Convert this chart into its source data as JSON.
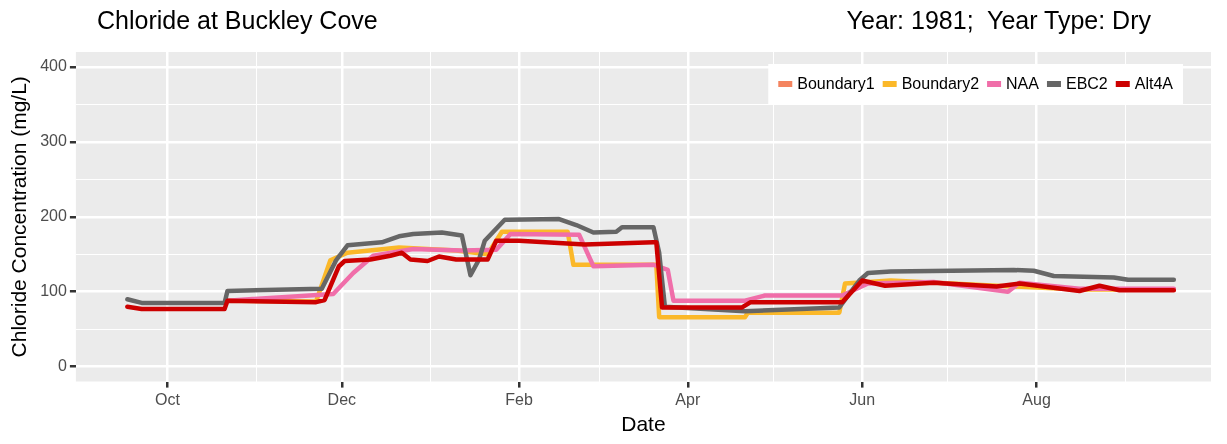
{
  "chart_data": {
    "type": "line",
    "title": "Chloride at Buckley Cove",
    "subtitle": "Year: 1981;  Year Type: Dry",
    "xlabel": "Date",
    "ylabel": "Chloride Concentration (mg/L)",
    "xlim": [
      "1980-08-30",
      "1981-10-01"
    ],
    "xticks": [
      {
        "value": "1980-10-01",
        "label": "Oct"
      },
      {
        "value": "1980-11-01",
        "label": null
      },
      {
        "value": "1980-12-01",
        "label": "Dec"
      },
      {
        "value": "1981-01-01",
        "label": null
      },
      {
        "value": "1981-02-01",
        "label": "Feb"
      },
      {
        "value": "1981-03-01",
        "label": null
      },
      {
        "value": "1981-04-01",
        "label": "Apr"
      },
      {
        "value": "1981-05-01",
        "label": null
      },
      {
        "value": "1981-06-01",
        "label": "Jun"
      },
      {
        "value": "1981-07-01",
        "label": null
      },
      {
        "value": "1981-08-01",
        "label": "Aug"
      },
      {
        "value": "1981-09-01",
        "label": null
      }
    ],
    "ylim": [
      -20,
      420
    ],
    "yticks": [
      0,
      {
        "value": 50,
        "label": null
      },
      100,
      {
        "value": 150,
        "label": null
      },
      200,
      {
        "value": 250,
        "label": null
      },
      300,
      {
        "value": 350,
        "label": null
      },
      400
    ],
    "grid": true,
    "legend": "top right",
    "marker": "none",
    "line_style": "solid",
    "series": [
      {
        "name": "Boundary1",
        "color": "#f4845f"
      },
      {
        "name": "Boundary2",
        "color": "#fbb829",
        "x": [
          "1980-10-22",
          "1980-11-22",
          "1980-11-27",
          "1980-12-03",
          "1980-12-21",
          "1981-01-10",
          "1981-01-21",
          "1981-01-26",
          "1981-02-18",
          "1981-02-20",
          "1981-03-21",
          "1981-03-22",
          "1981-04-21",
          "1981-04-22",
          "1981-05-24",
          "1981-05-26",
          "1981-06-11",
          "1981-07-18",
          "1981-08-16",
          "1981-09-18"
        ],
        "values": [
          88,
          87,
          142,
          152,
          159,
          155,
          150,
          180,
          180,
          136,
          136,
          66,
          66,
          72,
          72,
          111,
          115,
          108,
          103,
          103
        ]
      },
      {
        "name": "NAA",
        "color": "#f06ea9",
        "x": [
          "1980-10-22",
          "1980-11-28",
          "1980-12-05",
          "1980-12-12",
          "1980-12-26",
          "1981-01-12",
          "1981-01-24",
          "1981-01-29",
          "1981-02-22",
          "1981-02-27",
          "1981-03-20",
          "1981-03-25",
          "1981-03-27",
          "1981-04-21",
          "1981-04-28",
          "1981-05-25",
          "1981-06-03",
          "1981-06-26",
          "1981-07-22",
          "1981-07-26",
          "1981-08-16",
          "1981-09-18"
        ],
        "values": [
          88,
          97,
          125,
          148,
          157,
          155,
          156,
          177,
          176,
          134,
          136,
          129,
          88,
          88,
          95,
          95,
          111,
          113,
          100,
          112,
          104,
          104
        ]
      },
      {
        "name": "EBC2",
        "color": "#666666",
        "x": [
          "1980-09-17",
          "1980-09-22",
          "1980-10-21",
          "1980-10-22",
          "1980-11-24",
          "1980-11-29",
          "1980-12-03",
          "1980-12-15",
          "1980-12-21",
          "1980-12-26",
          "1981-01-05",
          "1981-01-12",
          "1981-01-15",
          "1981-01-18",
          "1981-01-20",
          "1981-01-27",
          "1981-02-15",
          "1981-02-21",
          "1981-02-27",
          "1981-03-07",
          "1981-03-09",
          "1981-03-20",
          "1981-03-22",
          "1981-03-24",
          "1981-04-21",
          "1981-05-24",
          "1981-05-31",
          "1981-06-03",
          "1981-06-11",
          "1981-07-24",
          "1981-07-31",
          "1981-08-07",
          "1981-08-28",
          "1981-09-02",
          "1981-09-18"
        ],
        "values": [
          90,
          85,
          85,
          101,
          104,
          142,
          162,
          166,
          174,
          177,
          179,
          175,
          122,
          143,
          168,
          196,
          197,
          189,
          179,
          180,
          186,
          186,
          152,
          80,
          74,
          79,
          115,
          125,
          127,
          129,
          128,
          121,
          119,
          116,
          116
        ]
      },
      {
        "name": "Alt4A",
        "color": "#cc0000",
        "x": [
          "1980-09-17",
          "1980-09-22",
          "1980-10-21",
          "1980-10-22",
          "1980-11-22",
          "1980-11-25",
          "1980-11-30",
          "1980-12-02",
          "1980-12-11",
          "1980-12-18",
          "1980-12-22",
          "1980-12-25",
          "1980-12-31",
          "1981-01-04",
          "1981-01-10",
          "1981-01-21",
          "1981-01-24",
          "1981-02-01",
          "1981-02-24",
          "1981-03-20",
          "1981-03-21",
          "1981-03-23",
          "1981-04-20",
          "1981-04-23",
          "1981-05-25",
          "1981-06-01",
          "1981-06-09",
          "1981-06-26",
          "1981-07-18",
          "1981-07-26",
          "1981-08-16",
          "1981-08-23",
          "1981-08-30",
          "1981-09-18"
        ],
        "values": [
          80,
          77,
          77,
          88,
          86,
          89,
          134,
          141,
          143,
          148,
          152,
          143,
          141,
          147,
          143,
          143,
          168,
          168,
          163,
          166,
          166,
          79,
          79,
          86,
          86,
          115,
          108,
          112,
          107,
          111,
          101,
          108,
          102,
          102
        ]
      }
    ]
  }
}
